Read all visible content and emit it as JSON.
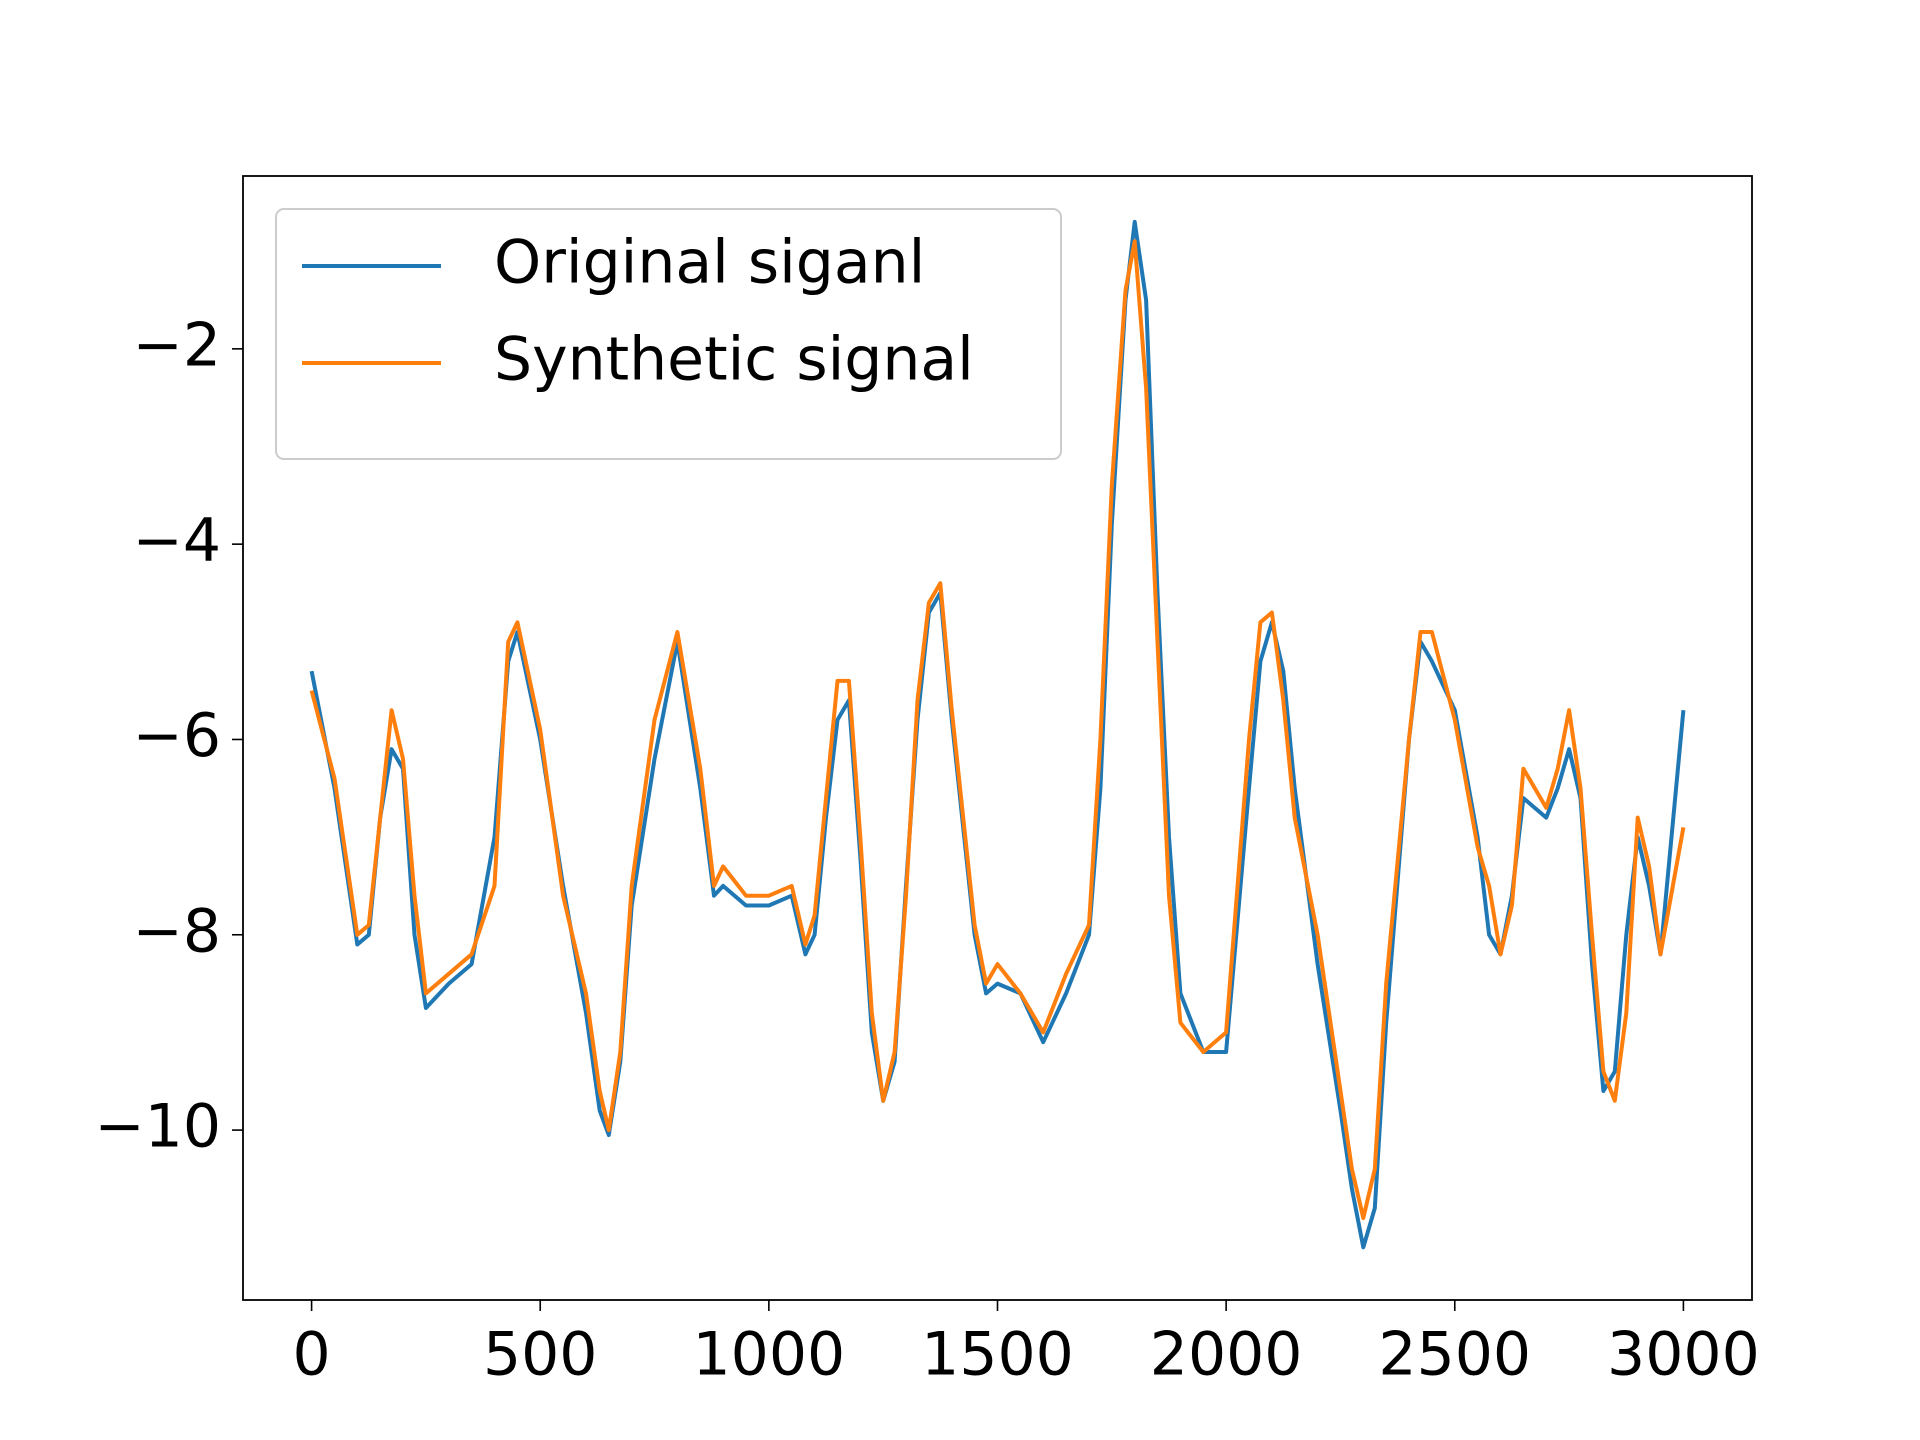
{
  "chart_data": {
    "type": "line",
    "x": [
      0,
      50,
      100,
      125,
      150,
      175,
      200,
      225,
      250,
      300,
      350,
      400,
      430,
      450,
      500,
      550,
      600,
      630,
      650,
      675,
      700,
      750,
      800,
      850,
      880,
      900,
      950,
      1000,
      1050,
      1080,
      1100,
      1125,
      1150,
      1175,
      1200,
      1225,
      1250,
      1275,
      1300,
      1325,
      1350,
      1375,
      1400,
      1450,
      1475,
      1500,
      1550,
      1600,
      1650,
      1700,
      1725,
      1750,
      1780,
      1800,
      1825,
      1850,
      1875,
      1900,
      1950,
      2000,
      2050,
      2075,
      2100,
      2125,
      2150,
      2200,
      2250,
      2275,
      2300,
      2325,
      2350,
      2400,
      2425,
      2450,
      2500,
      2550,
      2575,
      2600,
      2625,
      2650,
      2700,
      2725,
      2750,
      2775,
      2800,
      2825,
      2850,
      2875,
      2900,
      2925,
      2950,
      3000
    ],
    "series": [
      {
        "name": "Original siganl",
        "color": "#1f77b4",
        "values": [
          -5.3,
          -6.5,
          -8.1,
          -8.0,
          -6.8,
          -6.1,
          -6.3,
          -8.0,
          -8.75,
          -8.5,
          -8.3,
          -7.0,
          -5.2,
          -4.9,
          -6.0,
          -7.5,
          -8.8,
          -9.8,
          -10.05,
          -9.3,
          -7.7,
          -6.2,
          -5.0,
          -6.5,
          -7.6,
          -7.5,
          -7.7,
          -7.7,
          -7.6,
          -8.2,
          -8.0,
          -6.8,
          -5.8,
          -5.6,
          -7.2,
          -9.0,
          -9.7,
          -9.3,
          -7.5,
          -5.8,
          -4.7,
          -4.5,
          -5.8,
          -8.0,
          -8.6,
          -8.5,
          -8.6,
          -9.1,
          -8.6,
          -8.0,
          -6.5,
          -3.8,
          -1.5,
          -0.7,
          -1.5,
          -4.5,
          -7.0,
          -8.6,
          -9.2,
          -9.2,
          -6.5,
          -5.2,
          -4.8,
          -5.3,
          -6.5,
          -8.3,
          -9.8,
          -10.6,
          -11.2,
          -10.8,
          -8.9,
          -6.0,
          -5.0,
          -5.2,
          -5.7,
          -7.0,
          -8.0,
          -8.2,
          -7.6,
          -6.6,
          -6.8,
          -6.5,
          -6.1,
          -6.6,
          -8.3,
          -9.6,
          -9.4,
          -8.0,
          -7.0,
          -7.5,
          -8.2,
          -5.7
        ]
      },
      {
        "name": "Synthetic signal",
        "color": "#ff7f0e",
        "values": [
          -5.5,
          -6.4,
          -8.0,
          -7.9,
          -6.8,
          -5.7,
          -6.2,
          -7.6,
          -8.6,
          -8.4,
          -8.2,
          -7.5,
          -5.0,
          -4.8,
          -5.9,
          -7.6,
          -8.6,
          -9.6,
          -10.0,
          -9.2,
          -7.5,
          -5.8,
          -4.9,
          -6.3,
          -7.5,
          -7.3,
          -7.6,
          -7.6,
          -7.5,
          -8.1,
          -7.8,
          -6.6,
          -5.4,
          -5.4,
          -7.0,
          -8.8,
          -9.7,
          -9.2,
          -7.6,
          -5.6,
          -4.6,
          -4.4,
          -5.7,
          -7.9,
          -8.5,
          -8.3,
          -8.6,
          -9.0,
          -8.4,
          -7.9,
          -6.0,
          -3.4,
          -1.4,
          -0.9,
          -2.4,
          -5.0,
          -7.6,
          -8.9,
          -9.2,
          -9.0,
          -6.0,
          -4.8,
          -4.7,
          -5.6,
          -6.8,
          -8.0,
          -9.6,
          -10.4,
          -10.9,
          -10.4,
          -8.5,
          -6.0,
          -4.9,
          -4.9,
          -5.8,
          -7.1,
          -7.5,
          -8.2,
          -7.7,
          -6.3,
          -6.7,
          -6.3,
          -5.7,
          -6.5,
          -8.0,
          -9.4,
          -9.7,
          -8.8,
          -6.8,
          -7.3,
          -8.2,
          -6.9
        ]
      }
    ],
    "xlim": [
      -150,
      3150
    ],
    "ylim": [
      -11.74,
      -0.23
    ],
    "xticks": [
      0,
      500,
      1000,
      1500,
      2000,
      2500,
      3000
    ],
    "yticks": [
      {
        "value": -10,
        "label": "−10"
      },
      {
        "value": -8,
        "label": "−8"
      },
      {
        "value": -6,
        "label": "−6"
      },
      {
        "value": -4,
        "label": "−4"
      },
      {
        "value": -2,
        "label": "−2"
      }
    ],
    "legend": "upper left"
  }
}
